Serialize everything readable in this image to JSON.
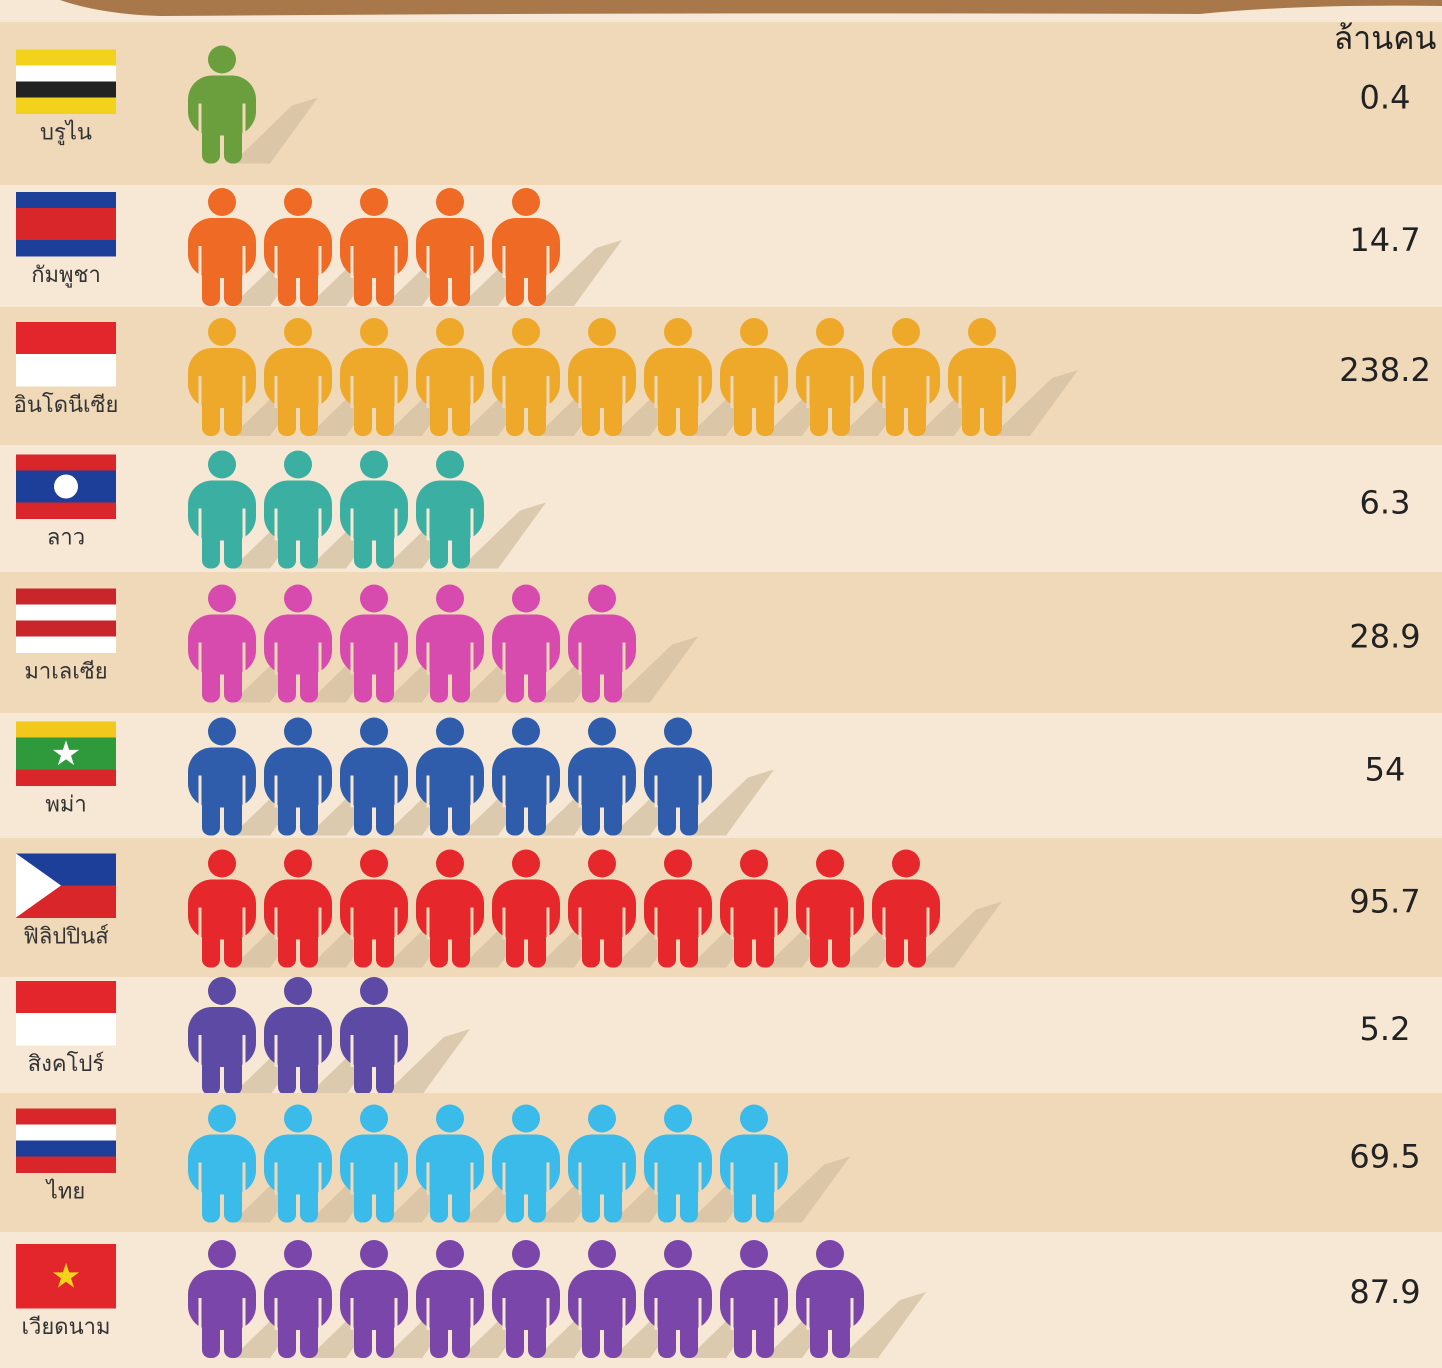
{
  "chart_data": {
    "type": "pictograph",
    "unit_label": "ล้านคน",
    "categories": [
      "บรูไน",
      "กัมพูชา",
      "อินโดนีเซีย",
      "ลาว",
      "มาเลเซีย",
      "พม่า",
      "ฟิลิปปินส์",
      "สิงคโปร์",
      "ไทย",
      "เวียดนาม"
    ],
    "values": [
      0.4,
      14.7,
      238.2,
      6.3,
      28.9,
      54,
      95.7,
      5.2,
      69.5,
      87.9
    ],
    "icons": [
      1,
      5,
      11,
      4,
      6,
      7,
      10,
      3,
      8,
      9
    ],
    "colors": [
      "#6b9e3c",
      "#ee6a25",
      "#eea92b",
      "#3bafa2",
      "#d84bae",
      "#2f5dab",
      "#e6272b",
      "#5c4aa4",
      "#3bbbea",
      "#7b46a9"
    ]
  }
}
